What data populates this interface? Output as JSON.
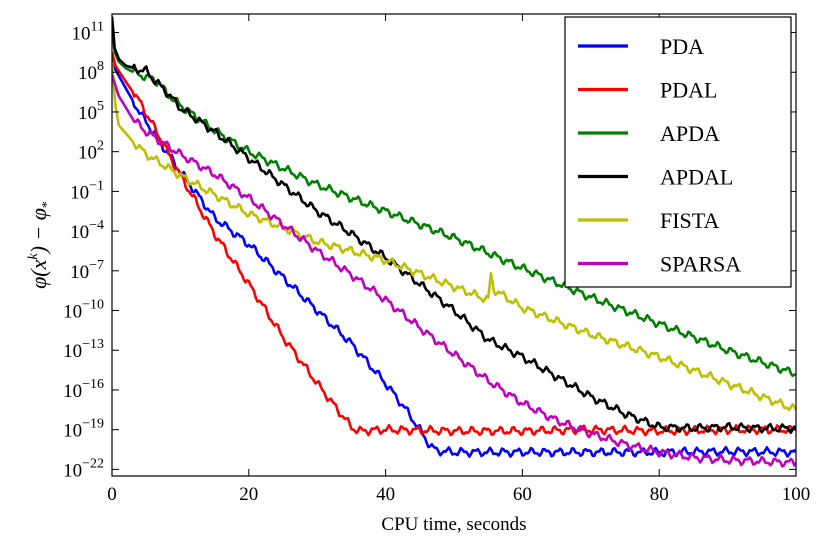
{
  "chart_data": {
    "type": "line",
    "title": "",
    "xlabel": "CPU time, seconds",
    "ylabel": "φ(x^k) − φ_*",
    "ylabel_parts": {
      "phi": "φ",
      "open": "(x",
      "k": "k",
      "close": ") − φ",
      "star": "*"
    },
    "xlim": [
      0,
      100
    ],
    "ylog10_lim": [
      -22.5,
      12.4
    ],
    "x_ticks": [
      0,
      20,
      40,
      60,
      80,
      100
    ],
    "y_tick_exponents": [
      11,
      8,
      5,
      2,
      -1,
      -4,
      -7,
      -10,
      -13,
      -16,
      -19,
      -22
    ],
    "y_tick_base": "10",
    "legend_position": "top-right",
    "series": [
      {
        "name": "PDA",
        "color": "#0000ff",
        "x": [
          0,
          0.5,
          2,
          4,
          6,
          10,
          15,
          20,
          25,
          30,
          35,
          40,
          43,
          45,
          46.5,
          47.5,
          50,
          60,
          70,
          80,
          90,
          100
        ],
        "log10y": [
          9.5,
          8.2,
          6.8,
          5.0,
          3.5,
          0.5,
          -3.0,
          -5.0,
          -7.5,
          -10.0,
          -12.5,
          -15.5,
          -17.5,
          -19.0,
          -20.2,
          -20.6,
          -20.7,
          -20.7,
          -20.7,
          -20.7,
          -20.65,
          -20.7
        ]
      },
      {
        "name": "PDAL",
        "color": "#ff0000",
        "x": [
          0,
          0.5,
          2,
          4,
          6,
          10,
          15,
          20,
          25,
          30,
          33,
          35,
          36,
          40,
          50,
          60,
          70,
          80,
          90,
          100
        ],
        "log10y": [
          9.5,
          8.5,
          7.3,
          5.8,
          4.0,
          0.2,
          -4.2,
          -8.0,
          -12.0,
          -15.5,
          -17.5,
          -18.8,
          -19.1,
          -19.0,
          -19.1,
          -19.1,
          -19.0,
          -19.1,
          -19.0,
          -19.0
        ]
      },
      {
        "name": "APDA",
        "color": "#008000",
        "x": [
          0,
          0.4,
          1,
          2,
          4,
          6,
          7,
          8,
          10,
          15,
          20,
          30,
          40,
          50,
          60,
          70,
          80,
          90,
          100
        ],
        "log10y": [
          11.5,
          9.5,
          8.8,
          8.3,
          7.8,
          7.5,
          7.1,
          6.4,
          5.5,
          3.6,
          2.0,
          -0.5,
          -2.5,
          -4.5,
          -6.8,
          -9.0,
          -11.0,
          -13.0,
          -14.8
        ]
      },
      {
        "name": "APDAL",
        "color": "#000000",
        "x": [
          0,
          0.4,
          1,
          2,
          4,
          5,
          6,
          8,
          10,
          15,
          20,
          25,
          30,
          35,
          40,
          45,
          50,
          55,
          60,
          65,
          70,
          75,
          80,
          85,
          90,
          95,
          100
        ],
        "log10y": [
          12.2,
          9.8,
          9.0,
          8.5,
          8.2,
          8.1,
          7.5,
          6.5,
          5.3,
          3.5,
          1.5,
          -0.5,
          -2.5,
          -4.2,
          -6.0,
          -8.0,
          -10.0,
          -12.2,
          -13.5,
          -15.0,
          -16.5,
          -17.8,
          -18.8,
          -18.9,
          -18.8,
          -18.9,
          -18.9
        ]
      },
      {
        "name": "FISTA",
        "color": "#bfbf00",
        "x": [
          0,
          0.5,
          1,
          3,
          5,
          10,
          20,
          30,
          40,
          50,
          55,
          55.4,
          55.8,
          57,
          60,
          70,
          80,
          90,
          100
        ],
        "log10y": [
          8.8,
          5.5,
          4.0,
          2.8,
          1.8,
          0.2,
          -2.7,
          -4.8,
          -6.2,
          -8.2,
          -9.2,
          -7.3,
          -8.4,
          -8.8,
          -9.8,
          -11.8,
          -13.5,
          -15.5,
          -17.5
        ]
      },
      {
        "name": "SPARSA",
        "color": "#bf00bf",
        "x": [
          0,
          1,
          3,
          5,
          10,
          15,
          20,
          25,
          30,
          35,
          40,
          45,
          50,
          55,
          60,
          65,
          70,
          75,
          80,
          85,
          90,
          95,
          100
        ],
        "log10y": [
          7.8,
          6.2,
          4.5,
          3.5,
          1.8,
          0.3,
          -1.5,
          -3.5,
          -5.5,
          -7.3,
          -9.2,
          -11.3,
          -13.3,
          -15.3,
          -17.0,
          -18.3,
          -19.3,
          -20.1,
          -20.7,
          -21.1,
          -21.3,
          -21.4,
          -21.5
        ]
      }
    ]
  }
}
